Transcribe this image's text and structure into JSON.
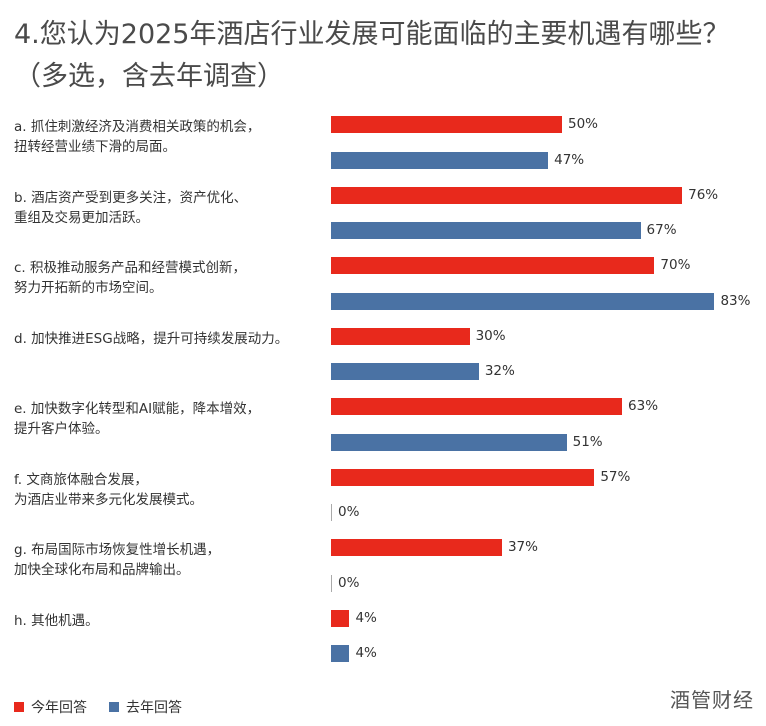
{
  "chart_data": {
    "type": "bar",
    "orientation": "horizontal",
    "title": "4.您认为2025年酒店行业发展可能面临的主要机遇有哪些？（多选，含去年调查）",
    "categories": [
      "a. 抓住刺激经济及消费相关政策的机会，\n扭转经营业绩下滑的局面。",
      "b. 酒店资产受到更多关注，资产优化、\n重组及交易更加活跃。",
      "c. 积极推动服务产品和经营模式创新，\n努力开拓新的市场空间。",
      "d. 加快推进ESG战略，提升可持续发展动力。",
      "e. 加快数字化转型和AI赋能，降本增效，\n提升客户体验。",
      "f. 文商旅体融合发展，\n为酒店业带来多元化发展模式。",
      "g. 布局国际市场恢复性增长机遇，\n加快全球化布局和品牌输出。",
      "h. 其他机遇。"
    ],
    "series": [
      {
        "name": "今年回答",
        "color": "#e8291c",
        "values": [
          50,
          76,
          70,
          30,
          63,
          57,
          37,
          4
        ]
      },
      {
        "name": "去年回答",
        "color": "#4a72a4",
        "values": [
          47,
          67,
          83,
          32,
          51,
          0,
          0,
          4
        ]
      }
    ],
    "value_suffix": "%",
    "xlim": [
      0,
      100
    ],
    "grid": false,
    "legend_position": "bottom-left"
  },
  "watermark": "酒管财经"
}
